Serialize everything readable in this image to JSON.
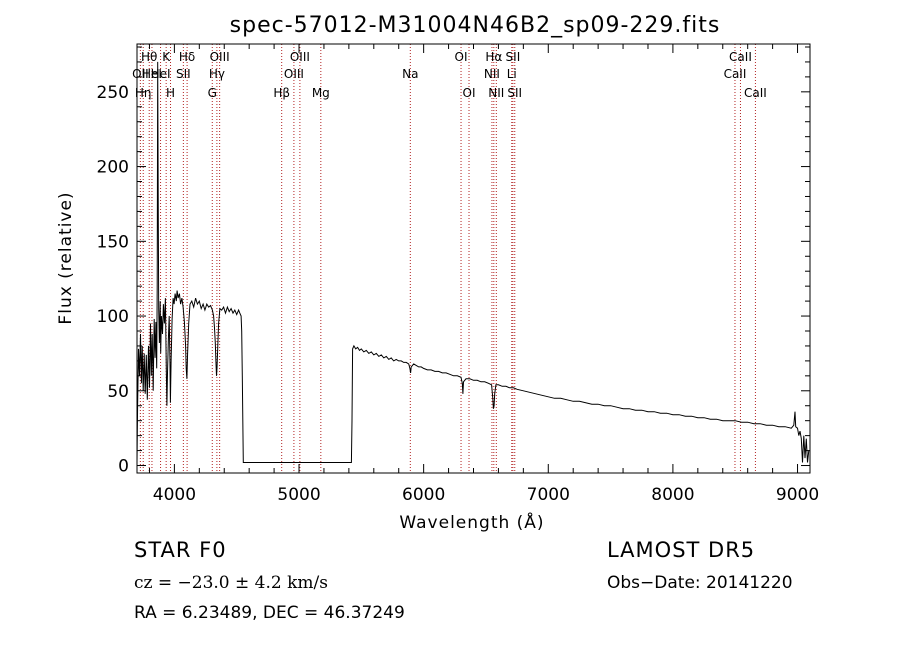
{
  "chart_data": {
    "type": "line",
    "title": "spec-57012-M31004N46B2_sp09-229.fits",
    "xlabel": "Wavelength (Å)",
    "ylabel": "Flux (relative)",
    "xlim": [
      3700,
      9100
    ],
    "ylim": [
      -5,
      282
    ],
    "xticks": [
      4000,
      5000,
      6000,
      7000,
      8000,
      9000
    ],
    "yticks": [
      0,
      50,
      100,
      150,
      200,
      250
    ],
    "grid": false,
    "line_color": "#000000",
    "marker_color": "#b22222",
    "series": [
      {
        "points": [
          [
            3700,
            2
          ],
          [
            3705,
            40
          ],
          [
            3712,
            78
          ],
          [
            3720,
            60
          ],
          [
            3728,
            88
          ],
          [
            3735,
            55
          ],
          [
            3742,
            80
          ],
          [
            3750,
            50
          ],
          [
            3758,
            75
          ],
          [
            3766,
            48
          ],
          [
            3775,
            74
          ],
          [
            3783,
            44
          ],
          [
            3792,
            80
          ],
          [
            3800,
            52
          ],
          [
            3808,
            95
          ],
          [
            3815,
            60
          ],
          [
            3822,
            88
          ],
          [
            3830,
            50
          ],
          [
            3838,
            98
          ],
          [
            3845,
            72
          ],
          [
            3852,
            96
          ],
          [
            3858,
            65
          ],
          [
            3862,
            120
          ],
          [
            3866,
            270
          ],
          [
            3870,
            180
          ],
          [
            3874,
            105
          ],
          [
            3880,
            82
          ],
          [
            3886,
            110
          ],
          [
            3890,
            75
          ],
          [
            3896,
            100
          ],
          [
            3905,
            88
          ],
          [
            3912,
            108
          ],
          [
            3920,
            95
          ],
          [
            3928,
            112
          ],
          [
            3935,
            64
          ],
          [
            3940,
            40
          ],
          [
            3945,
            62
          ],
          [
            3952,
            85
          ],
          [
            3958,
            100
          ],
          [
            3965,
            68
          ],
          [
            3968,
            42
          ],
          [
            3974,
            70
          ],
          [
            3982,
            98
          ],
          [
            3990,
            112
          ],
          [
            3998,
            108
          ],
          [
            4006,
            115
          ],
          [
            4015,
            110
          ],
          [
            4022,
            117
          ],
          [
            4030,
            112
          ],
          [
            4040,
            115
          ],
          [
            4050,
            108
          ],
          [
            4060,
            112
          ],
          [
            4070,
            106
          ],
          [
            4080,
            96
          ],
          [
            4090,
            80
          ],
          [
            4095,
            65
          ],
          [
            4100,
            58
          ],
          [
            4106,
            75
          ],
          [
            4115,
            95
          ],
          [
            4125,
            108
          ],
          [
            4140,
            110
          ],
          [
            4155,
            106
          ],
          [
            4170,
            112
          ],
          [
            4185,
            108
          ],
          [
            4200,
            110
          ],
          [
            4215,
            105
          ],
          [
            4230,
            108
          ],
          [
            4245,
            104
          ],
          [
            4260,
            108
          ],
          [
            4275,
            106
          ],
          [
            4290,
            107
          ],
          [
            4305,
            104
          ],
          [
            4315,
            100
          ],
          [
            4322,
            92
          ],
          [
            4328,
            82
          ],
          [
            4333,
            70
          ],
          [
            4338,
            60
          ],
          [
            4342,
            65
          ],
          [
            4348,
            80
          ],
          [
            4355,
            95
          ],
          [
            4365,
            105
          ],
          [
            4380,
            104
          ],
          [
            4395,
            106
          ],
          [
            4410,
            102
          ],
          [
            4425,
            106
          ],
          [
            4440,
            103
          ],
          [
            4455,
            105
          ],
          [
            4470,
            102
          ],
          [
            4485,
            104
          ],
          [
            4500,
            101
          ],
          [
            4515,
            104
          ],
          [
            4525,
            102
          ],
          [
            4535,
            100
          ],
          [
            4540,
            90
          ],
          [
            4545,
            60
          ],
          [
            4550,
            25
          ],
          [
            4553,
            2
          ],
          [
            4560,
            2
          ],
          [
            4700,
            2
          ],
          [
            4900,
            2
          ],
          [
            5100,
            2
          ],
          [
            5300,
            2
          ],
          [
            5420,
            2
          ],
          [
            5425,
            30
          ],
          [
            5430,
            78
          ],
          [
            5440,
            80
          ],
          [
            5455,
            78
          ],
          [
            5470,
            79
          ],
          [
            5485,
            77
          ],
          [
            5500,
            78
          ],
          [
            5520,
            76
          ],
          [
            5540,
            77
          ],
          [
            5560,
            75
          ],
          [
            5580,
            76
          ],
          [
            5600,
            74
          ],
          [
            5620,
            75
          ],
          [
            5640,
            73
          ],
          [
            5660,
            74
          ],
          [
            5680,
            72
          ],
          [
            5700,
            73
          ],
          [
            5720,
            71
          ],
          [
            5740,
            72
          ],
          [
            5760,
            70
          ],
          [
            5780,
            71
          ],
          [
            5800,
            70
          ],
          [
            5820,
            70
          ],
          [
            5840,
            69
          ],
          [
            5860,
            69
          ],
          [
            5880,
            68
          ],
          [
            5890,
            65
          ],
          [
            5895,
            62
          ],
          [
            5900,
            66
          ],
          [
            5920,
            68
          ],
          [
            5940,
            67
          ],
          [
            5960,
            66
          ],
          [
            5980,
            66
          ],
          [
            6000,
            65
          ],
          [
            6030,
            64
          ],
          [
            6060,
            64
          ],
          [
            6090,
            63
          ],
          [
            6120,
            63
          ],
          [
            6150,
            62
          ],
          [
            6180,
            62
          ],
          [
            6210,
            61
          ],
          [
            6240,
            60
          ],
          [
            6270,
            60
          ],
          [
            6300,
            59
          ],
          [
            6310,
            55
          ],
          [
            6315,
            48
          ],
          [
            6320,
            56
          ],
          [
            6340,
            58
          ],
          [
            6370,
            58
          ],
          [
            6400,
            57
          ],
          [
            6430,
            57
          ],
          [
            6460,
            56
          ],
          [
            6490,
            56
          ],
          [
            6520,
            55
          ],
          [
            6545,
            54
          ],
          [
            6555,
            45
          ],
          [
            6560,
            38
          ],
          [
            6565,
            40
          ],
          [
            6570,
            48
          ],
          [
            6580,
            54
          ],
          [
            6600,
            54
          ],
          [
            6630,
            53
          ],
          [
            6660,
            53
          ],
          [
            6690,
            52
          ],
          [
            6720,
            52
          ],
          [
            6750,
            51
          ],
          [
            6800,
            50
          ],
          [
            6850,
            49
          ],
          [
            6900,
            48
          ],
          [
            6950,
            47
          ],
          [
            7000,
            46
          ],
          [
            7050,
            45
          ],
          [
            7100,
            45
          ],
          [
            7150,
            44
          ],
          [
            7200,
            43
          ],
          [
            7250,
            43
          ],
          [
            7300,
            42
          ],
          [
            7350,
            41
          ],
          [
            7400,
            41
          ],
          [
            7450,
            40
          ],
          [
            7500,
            40
          ],
          [
            7550,
            39
          ],
          [
            7600,
            38
          ],
          [
            7650,
            38
          ],
          [
            7700,
            37
          ],
          [
            7750,
            37
          ],
          [
            7800,
            36
          ],
          [
            7850,
            36
          ],
          [
            7900,
            35
          ],
          [
            7950,
            35
          ],
          [
            8000,
            34
          ],
          [
            8050,
            34
          ],
          [
            8100,
            33
          ],
          [
            8150,
            33
          ],
          [
            8200,
            32
          ],
          [
            8250,
            32
          ],
          [
            8300,
            31
          ],
          [
            8350,
            31
          ],
          [
            8400,
            30
          ],
          [
            8450,
            30
          ],
          [
            8500,
            30
          ],
          [
            8550,
            29
          ],
          [
            8600,
            29
          ],
          [
            8650,
            28
          ],
          [
            8700,
            28
          ],
          [
            8750,
            27
          ],
          [
            8800,
            27
          ],
          [
            8850,
            26
          ],
          [
            8900,
            26
          ],
          [
            8950,
            25
          ],
          [
            8970,
            27
          ],
          [
            8980,
            36
          ],
          [
            8985,
            26
          ],
          [
            9000,
            25
          ],
          [
            9010,
            20
          ],
          [
            9020,
            23
          ],
          [
            9030,
            18
          ],
          [
            9040,
            2
          ],
          [
            9050,
            20
          ],
          [
            9060,
            5
          ],
          [
            9070,
            18
          ],
          [
            9080,
            2
          ],
          [
            9090,
            10
          ]
        ]
      }
    ],
    "lines": [
      {
        "x": 3727,
        "labels": [
          "OII"
        ],
        "row": 1
      },
      {
        "x": 3750,
        "labels": [
          "Hη"
        ],
        "row": 2
      },
      {
        "x": 3798,
        "labels": [
          "Hθ"
        ],
        "row": 0
      },
      {
        "x": 3820,
        "labels": [
          "HeI"
        ],
        "row": 1
      },
      {
        "x": 3889,
        "labels": [
          "HeI"
        ],
        "row": 1
      },
      {
        "x": 3934,
        "labels": [
          "K"
        ],
        "row": 0
      },
      {
        "x": 3969,
        "labels": [
          "H"
        ],
        "row": 2
      },
      {
        "x": 4072,
        "labels": [
          "SII"
        ],
        "row": 1
      },
      {
        "x": 4102,
        "labels": [
          "Hδ"
        ],
        "row": 0
      },
      {
        "x": 4304,
        "labels": [
          "G"
        ],
        "row": 2
      },
      {
        "x": 4341,
        "labels": [
          "Hγ"
        ],
        "row": 1
      },
      {
        "x": 4363,
        "labels": [
          "OIII"
        ],
        "row": 0
      },
      {
        "x": 4861,
        "labels": [
          "Hβ"
        ],
        "row": 2
      },
      {
        "x": 4959,
        "labels": [
          "OIII"
        ],
        "row": 1
      },
      {
        "x": 5007,
        "labels": [
          "OIII"
        ],
        "row": 0
      },
      {
        "x": 5175,
        "labels": [
          "Mg"
        ],
        "row": 2
      },
      {
        "x": 5893,
        "labels": [
          "Na"
        ],
        "row": 1
      },
      {
        "x": 6300,
        "labels": [
          "OI"
        ],
        "row": 0
      },
      {
        "x": 6364,
        "labels": [
          "OI"
        ],
        "row": 2
      },
      {
        "x": 6548,
        "labels": [
          "NII"
        ],
        "row": 1
      },
      {
        "x": 6563,
        "labels": [
          "Hα"
        ],
        "row": 0
      },
      {
        "x": 6583,
        "labels": [
          "NII"
        ],
        "row": 2
      },
      {
        "x": 6707,
        "labels": [
          "Li"
        ],
        "row": 1
      },
      {
        "x": 6716,
        "labels": [
          "SII"
        ],
        "row": 0
      },
      {
        "x": 6731,
        "labels": [
          "SII"
        ],
        "row": 2
      },
      {
        "x": 8498,
        "labels": [
          "CaII"
        ],
        "row": 1
      },
      {
        "x": 8542,
        "labels": [
          "CaII"
        ],
        "row": 0
      },
      {
        "x": 8662,
        "labels": [
          "CaII"
        ],
        "row": 2
      }
    ]
  },
  "info": {
    "object_type": "STAR     F0",
    "survey": "LAMOST DR5",
    "cz": "cz = −23.0 ± 4.2 km/s",
    "obs_date": "Obs−Date: 20141220",
    "radec": "RA =    6.23489, DEC =  46.37249"
  }
}
